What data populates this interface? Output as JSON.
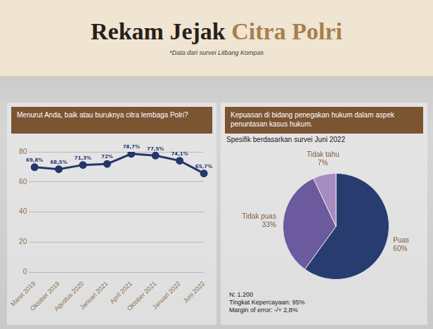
{
  "header": {
    "title_parts": [
      "Rekam Jejak",
      "Citra Polri"
    ],
    "source": "*Data dari survei Litbang Kompas"
  },
  "chart_data": [
    {
      "type": "line",
      "title": "Menurut Anda, baik atau buruknya citra lembaga Polri?",
      "categories": [
        "Maret 2019",
        "Oktober 2019",
        "Agustus 2020",
        "Januari 2021",
        "April 2021",
        "Oktober 2021",
        "Januari 2022",
        "Juni 2022"
      ],
      "values": [
        69.8,
        68.5,
        71.3,
        72,
        78.7,
        77.5,
        74.1,
        65.7
      ],
      "value_labels": [
        "69,8%",
        "68,5%",
        "71,3%",
        "72%",
        "78,7%",
        "77,5%",
        "74,1%",
        "65,7%"
      ],
      "data_labels": true,
      "color": "#24366b",
      "marker": "circle",
      "ylim": [
        0,
        80
      ],
      "yticks": [
        0,
        20,
        40,
        60,
        80
      ],
      "grid": true
    },
    {
      "type": "pie",
      "title": "Kepuasan di bidang penegakan hukum dalam aspek penuntasan kasus hukum.",
      "subtitle": "Spesifik berdasarkan survei Juni 2022",
      "categories": [
        "Puas",
        "Tidak puas",
        "Tidak tahu"
      ],
      "values": [
        60,
        33,
        7
      ],
      "value_labels": [
        "60%",
        "33%",
        "7%"
      ],
      "data_labels": true,
      "colors": [
        "#283c70",
        "#6b5a9e",
        "#a78bc3"
      ],
      "notes": [
        "N: 1.200",
        "Tingkat Kepercayaan: 95%",
        "Margin of error: -/+ 2,8%"
      ]
    }
  ]
}
